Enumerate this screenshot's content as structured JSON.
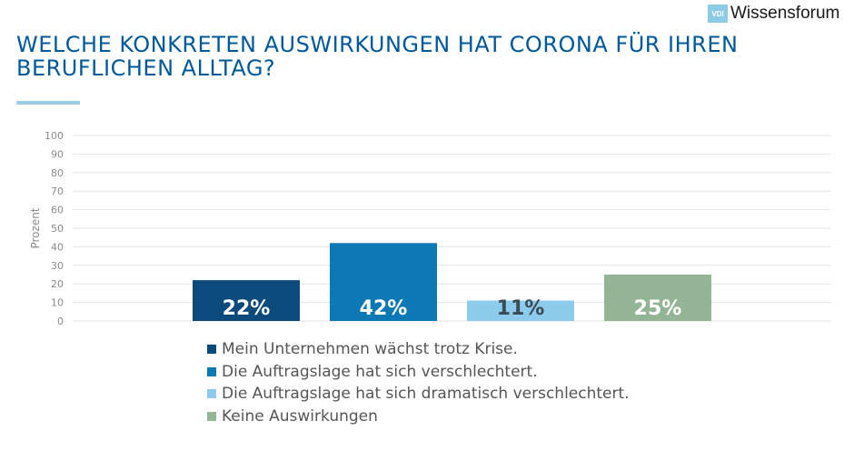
{
  "logo": {
    "badge": "VDI",
    "text": "Wissensforum"
  },
  "title": "WELCHE KONKRETEN AUSWIRKUNGEN HAT CORONA FÜR IHREN BERUFLICHEN ALLTAG?",
  "colors": {
    "title": "#00589a",
    "accent_rule": "#9ccde6",
    "grid": "#e3e3e3",
    "axis_text": "#8a8a8a"
  },
  "chart_data": {
    "type": "bar",
    "ylabel": "Prozent",
    "ylim": [
      0,
      100
    ],
    "yticks": [
      0,
      10,
      20,
      30,
      40,
      50,
      60,
      70,
      80,
      90,
      100
    ],
    "grid": true,
    "legend_position": "bottom",
    "series": [
      {
        "name": "Mein Unternehmen wächst trotz Krise.",
        "value": 22,
        "label": "22%",
        "color": "#0c4a7c",
        "label_color": "#ffffff"
      },
      {
        "name": "Die Auftragslage hat sich verschlechtert.",
        "value": 42,
        "label": "42%",
        "color": "#0c78b4",
        "label_color": "#ffffff"
      },
      {
        "name": "Die Auftragslage hat sich dramatisch verschlechtert.",
        "value": 11,
        "label": "11%",
        "color": "#8dcbec",
        "label_color": "#3c4a55"
      },
      {
        "name": "Keine Auswirkungen",
        "value": 25,
        "label": "25%",
        "color": "#94b595",
        "label_color": "#ffffff"
      }
    ]
  }
}
